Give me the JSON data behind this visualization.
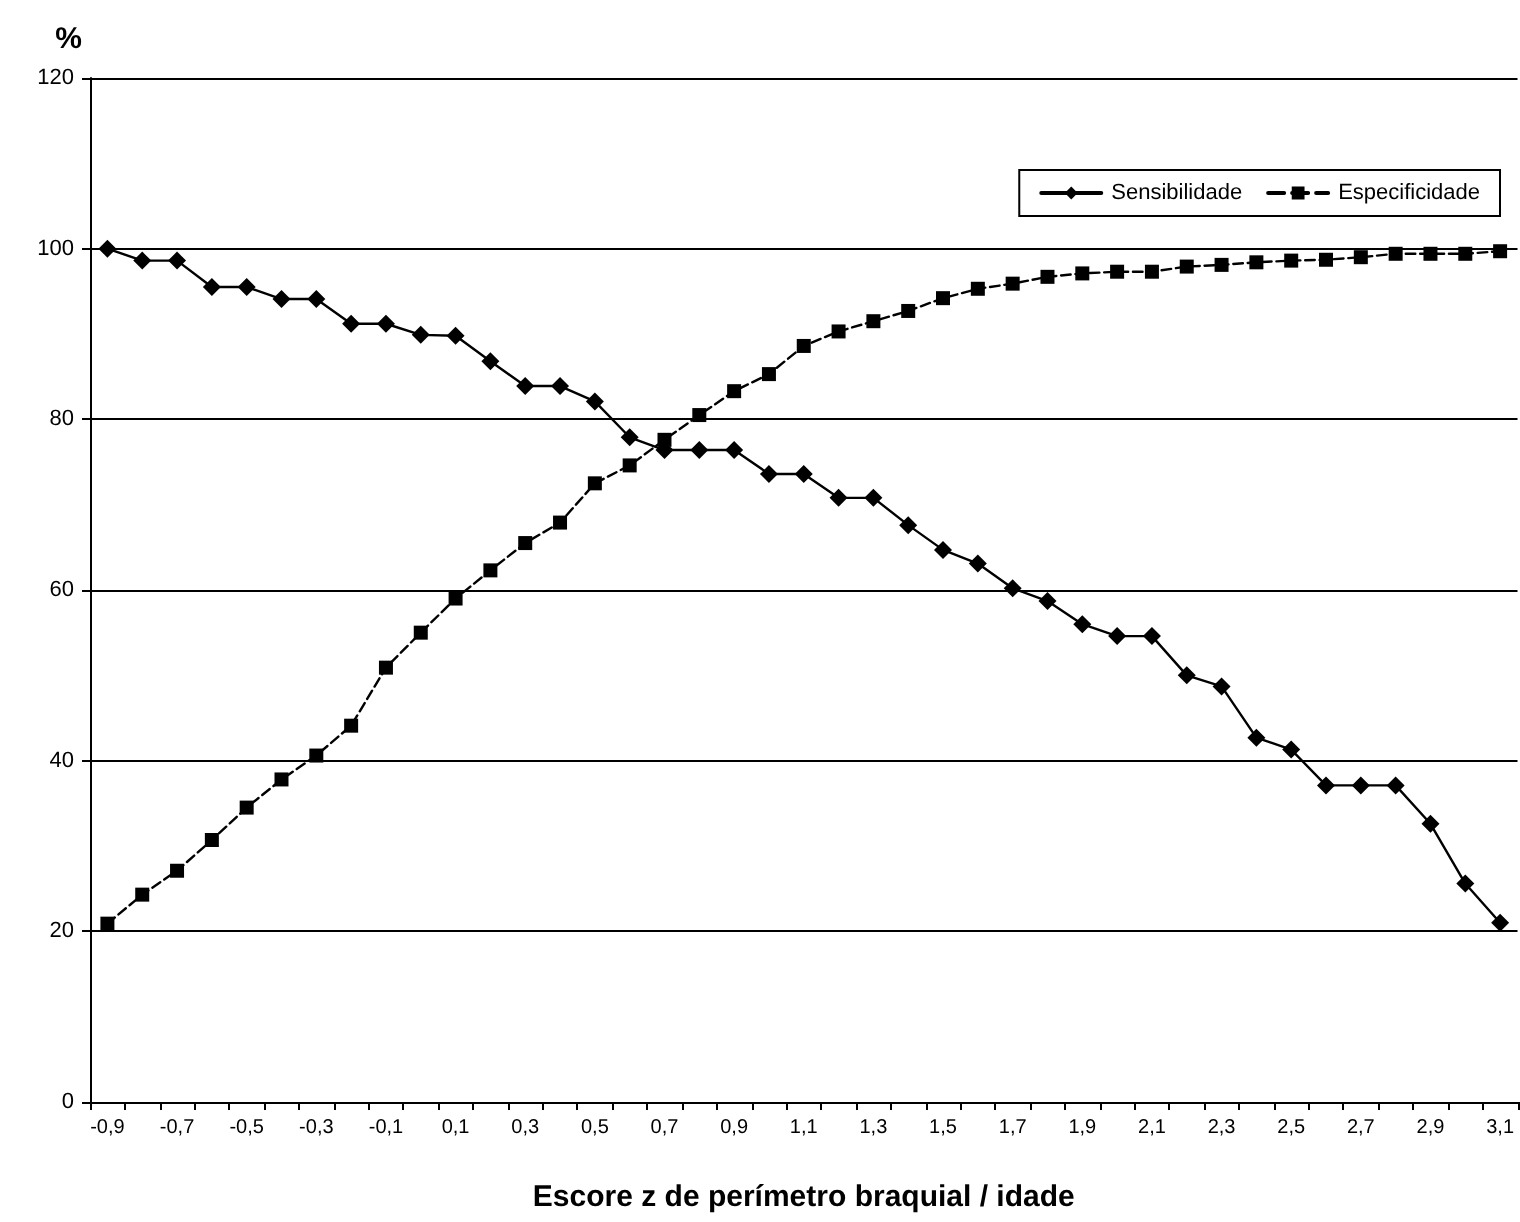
{
  "chart_data": {
    "type": "line",
    "xlabel": "Escore z de perímetro braquial / idade",
    "ylabel": "%",
    "categories": [
      "-0,9",
      null,
      "-0,7",
      null,
      "-0,5",
      null,
      "-0,3",
      null,
      "-0,1",
      null,
      "0,1",
      null,
      "0,3",
      null,
      "0,5",
      null,
      "0,7",
      null,
      "0,9",
      null,
      "1,1",
      null,
      "1,3",
      null,
      "1,5",
      null,
      "1,7",
      null,
      "1,9",
      null,
      "2,1",
      null,
      "2,3",
      null,
      "2,5",
      null,
      "2,7",
      null,
      "2,9",
      null,
      "3,1"
    ],
    "series": [
      {
        "name": "Sensibilidade",
        "color": "#000000",
        "marker": "diamond",
        "line_style": "solid",
        "values": [
          100,
          98.6,
          98.6,
          95.5,
          95.5,
          94.1,
          94.1,
          91.2,
          91.2,
          89.9,
          89.8,
          86.8,
          83.9,
          83.9,
          82.1,
          77.9,
          76.4,
          76.4,
          76.4,
          73.6,
          73.6,
          70.8,
          70.8,
          67.6,
          64.7,
          63.1,
          60.2,
          58.7,
          56.0,
          54.6,
          54.6,
          50.0,
          48.7,
          42.7,
          41.3,
          37.1,
          37.1,
          37.1,
          32.6,
          25.6,
          21.0
        ]
      },
      {
        "name": "Especificidade",
        "color": "#000000",
        "marker": "square",
        "line_style": "dashed",
        "values": [
          20.9,
          24.3,
          27.1,
          30.7,
          34.5,
          37.8,
          40.6,
          44.1,
          50.9,
          55.0,
          59.0,
          62.3,
          65.5,
          67.9,
          72.5,
          74.6,
          77.6,
          80.5,
          83.3,
          85.3,
          88.6,
          90.3,
          91.5,
          92.7,
          94.2,
          95.3,
          95.9,
          96.7,
          97.1,
          97.3,
          97.3,
          97.9,
          98.1,
          98.4,
          98.6,
          98.7,
          99.0,
          99.4,
          99.4,
          99.4,
          99.7
        ]
      }
    ],
    "ylim": [
      0,
      120
    ],
    "yticks": [
      0,
      20,
      40,
      60,
      80,
      100,
      120
    ],
    "grid": "y",
    "legend": "top right"
  }
}
